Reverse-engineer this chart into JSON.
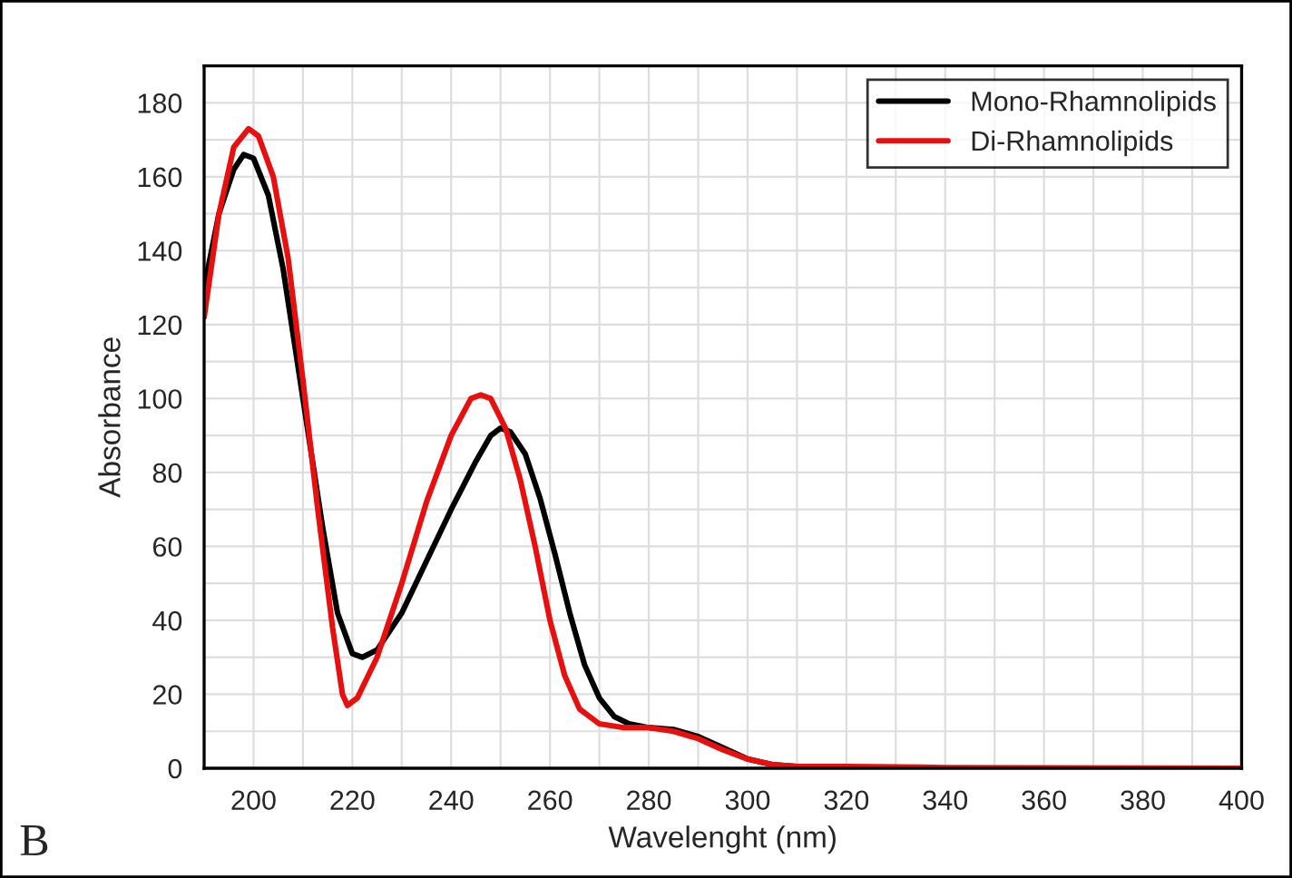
{
  "chart_data": {
    "type": "line",
    "xlabel": "Wavelenght (nm)",
    "ylabel": "Absorbance",
    "annotations": [
      "B"
    ],
    "xlim": [
      190,
      400
    ],
    "xticks": [
      200,
      220,
      240,
      260,
      280,
      300,
      320,
      340,
      360,
      380,
      400
    ],
    "ylim": [
      0,
      190
    ],
    "yticks": [
      0,
      20,
      40,
      60,
      80,
      100,
      120,
      140,
      160,
      180
    ],
    "grid": true,
    "legend": "top right",
    "line_style": "solid",
    "marker": "none",
    "series": [
      {
        "name": "Mono-Rhamnolipids",
        "color": "#000000",
        "x": [
          190,
          193,
          196,
          198,
          200,
          203,
          206,
          210,
          214,
          217,
          220,
          222,
          225,
          230,
          235,
          240,
          245,
          248,
          250,
          252,
          255,
          258,
          261,
          264,
          267,
          270,
          273,
          276,
          280,
          285,
          290,
          295,
          300,
          305,
          310,
          320,
          340,
          400
        ],
        "values": [
          130,
          150,
          162,
          166,
          165,
          155,
          135,
          100,
          65,
          42,
          31,
          30,
          32,
          42,
          56,
          70,
          83,
          90,
          92,
          91,
          85,
          73,
          58,
          42,
          28,
          19,
          14,
          12,
          11,
          10.5,
          8.6,
          5.6,
          2.5,
          1,
          0.5,
          0.2,
          0,
          0
        ]
      },
      {
        "name": "Di-Rhamnolipids",
        "color": "#e8100f",
        "x": [
          190,
          193,
          196,
          199,
          201,
          204,
          207,
          210,
          213,
          216,
          218,
          219,
          221,
          225,
          230,
          235,
          240,
          244,
          246,
          248,
          251,
          254,
          257,
          260,
          263,
          266,
          270,
          275,
          280,
          285,
          290,
          295,
          300,
          305,
          310,
          320,
          340,
          400
        ],
        "values": [
          122,
          150,
          168,
          173,
          171,
          160,
          138,
          105,
          70,
          38,
          20,
          17,
          19,
          30,
          50,
          72,
          90,
          100,
          101,
          100,
          92,
          78,
          60,
          40,
          25,
          16,
          12,
          11,
          11,
          10,
          8,
          5,
          2.5,
          1,
          0.5,
          0.5,
          0.2,
          0
        ]
      }
    ]
  }
}
